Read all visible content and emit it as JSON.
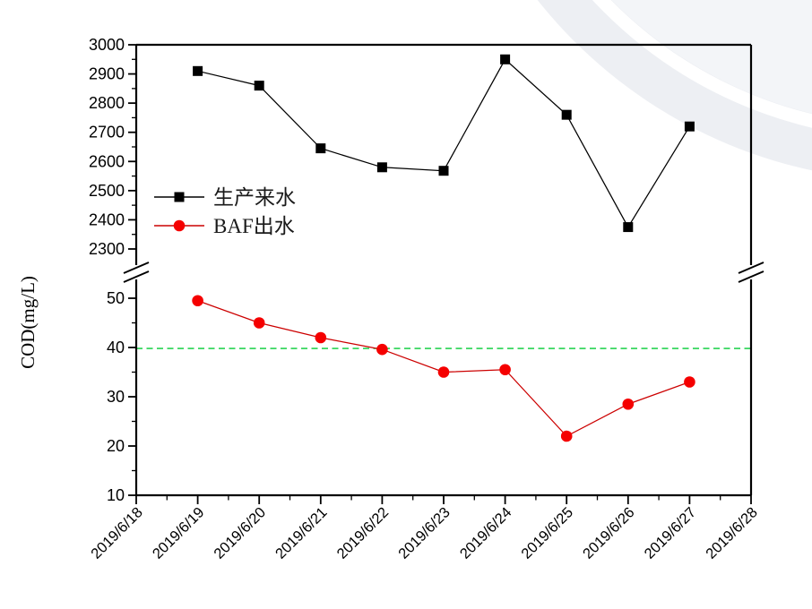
{
  "chart_data": {
    "type": "line",
    "title": "",
    "xlabel": "",
    "ylabel": "COD(mg/L)",
    "grid": false,
    "legend_position": "inside-upper-left",
    "x_categories": [
      "2019/6/18",
      "2019/6/19",
      "2019/6/20",
      "2019/6/21",
      "2019/6/22",
      "2019/6/23",
      "2019/6/24",
      "2019/6/25",
      "2019/6/26",
      "2019/6/27",
      "2019/6/28"
    ],
    "broken_y_axis": {
      "upper": {
        "range": [
          2300,
          3000
        ],
        "major_ticks": [
          3000,
          2900,
          2800,
          2700,
          2600,
          2500,
          2400,
          2300
        ],
        "minor_step": 50
      },
      "lower": {
        "range": [
          10,
          50
        ],
        "major_ticks": [
          50,
          40,
          30,
          20,
          10
        ],
        "minor_step": 5
      }
    },
    "series": [
      {
        "name": "生产来水",
        "axis": "upper",
        "marker": "square",
        "color": "#000000",
        "line_color": "#000000",
        "x_start_index": 1,
        "x": [
          "2019/6/19",
          "2019/6/20",
          "2019/6/21",
          "2019/6/22",
          "2019/6/23",
          "2019/6/24",
          "2019/6/25",
          "2019/6/26",
          "2019/6/27"
        ],
        "values": [
          2910,
          2860,
          2645,
          2580,
          2568,
          2950,
          2760,
          2375,
          2720
        ]
      },
      {
        "name": "BAF出水",
        "axis": "lower",
        "marker": "circle",
        "color": "#f50000",
        "line_color": "#cc0000",
        "x_start_index": 1,
        "x": [
          "2019/6/19",
          "2019/6/20",
          "2019/6/21",
          "2019/6/22",
          "2019/6/23",
          "2019/6/24",
          "2019/6/25",
          "2019/6/26",
          "2019/6/27"
        ],
        "values": [
          49.5,
          45,
          42,
          39.6,
          35,
          35.5,
          22,
          28.5,
          33
        ]
      }
    ],
    "reference_line": {
      "value": 39.8,
      "axis": "lower",
      "color": "#00cc33",
      "style": "dashed"
    }
  },
  "decor": {
    "corner_fill_outer": "#edeff3",
    "corner_fill_inner": "#f3f5f8",
    "corner_ring": "#ffffff"
  }
}
